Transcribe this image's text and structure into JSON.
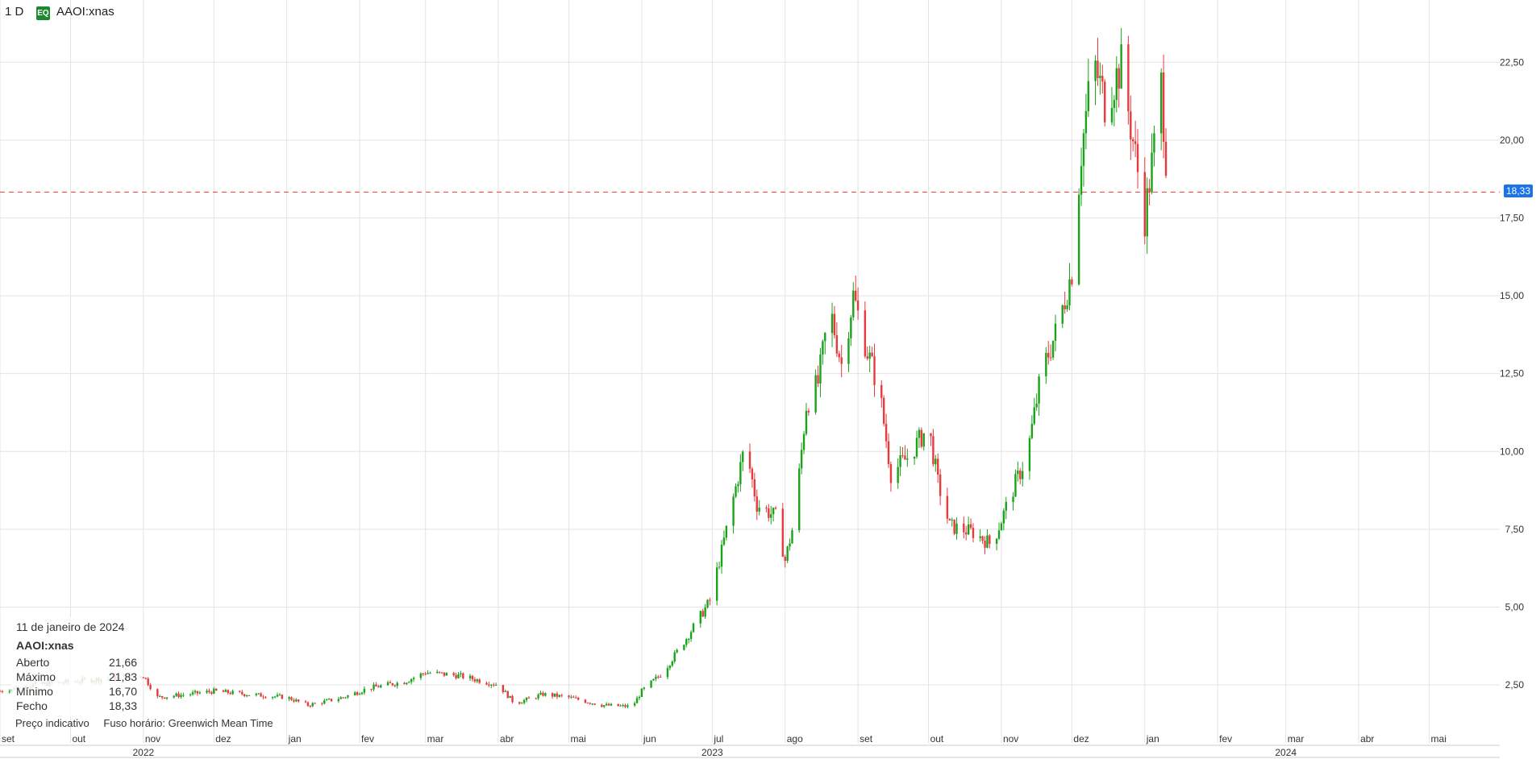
{
  "header": {
    "interval": "1 D",
    "badge": "EQ",
    "symbol": "AAOI:xnas"
  },
  "colors": {
    "up": "#1aa31a",
    "down": "#e8393e",
    "grid": "#e3e3e3",
    "last_line": "#e8393e",
    "last_badge": "#1a73e8"
  },
  "info": {
    "date": "11 de janeiro de 2024",
    "symbol": "AAOI:xnas",
    "rows": [
      {
        "label": "Aberto",
        "value": "21,66"
      },
      {
        "label": "Máximo",
        "value": "21,83"
      },
      {
        "label": "Mínimo",
        "value": "16,70"
      },
      {
        "label": "Fecho",
        "value": "18,33"
      }
    ]
  },
  "footer": {
    "note": "Preço indicativo",
    "timezone": "Fuso horário: Greenwich Mean Time"
  },
  "chart_data": {
    "type": "candlestick",
    "x_start": "2022-09-01",
    "x_end": "2024-05-31",
    "ylim": [
      1.0,
      24.5
    ],
    "y_ticks": [
      2.5,
      5.0,
      7.5,
      10.0,
      12.5,
      15.0,
      17.5,
      20.0,
      22.5
    ],
    "y_tick_labels": [
      "2,50",
      "5,00",
      "7,50",
      "10,00",
      "12,50",
      "15,00",
      "17,50",
      "20,00",
      "22,50"
    ],
    "month_labels": [
      {
        "date": "2022-09-01",
        "label": "set"
      },
      {
        "date": "2022-10-01",
        "label": "out"
      },
      {
        "date": "2022-11-01",
        "label": "nov"
      },
      {
        "date": "2022-12-01",
        "label": "dez"
      },
      {
        "date": "2023-01-01",
        "label": "jan"
      },
      {
        "date": "2023-02-01",
        "label": "fev"
      },
      {
        "date": "2023-03-01",
        "label": "mar"
      },
      {
        "date": "2023-04-01",
        "label": "abr"
      },
      {
        "date": "2023-05-01",
        "label": "mai"
      },
      {
        "date": "2023-06-01",
        "label": "jun"
      },
      {
        "date": "2023-07-01",
        "label": "jul"
      },
      {
        "date": "2023-08-01",
        "label": "ago"
      },
      {
        "date": "2023-09-01",
        "label": "set"
      },
      {
        "date": "2023-10-01",
        "label": "out"
      },
      {
        "date": "2023-11-01",
        "label": "nov"
      },
      {
        "date": "2023-12-01",
        "label": "dez"
      },
      {
        "date": "2024-01-01",
        "label": "jan"
      },
      {
        "date": "2024-02-01",
        "label": "fev"
      },
      {
        "date": "2024-03-01",
        "label": "mar"
      },
      {
        "date": "2024-04-01",
        "label": "abr"
      },
      {
        "date": "2024-05-01",
        "label": "mai"
      }
    ],
    "year_labels": [
      {
        "date": "2022-11-01",
        "label": "2022"
      },
      {
        "date": "2023-07-01",
        "label": "2023"
      },
      {
        "date": "2024-03-01",
        "label": "2024"
      }
    ],
    "last_price": 18.33,
    "last_price_label": "18,33",
    "closes": [
      [
        "2022-09-01",
        2.3
      ],
      [
        "2022-09-15",
        2.5
      ],
      [
        "2022-10-01",
        2.6
      ],
      [
        "2022-10-15",
        2.7
      ],
      [
        "2022-11-01",
        2.8
      ],
      [
        "2022-11-07",
        2.1
      ],
      [
        "2022-11-20",
        2.2
      ],
      [
        "2022-12-01",
        2.3
      ],
      [
        "2022-12-15",
        2.2
      ],
      [
        "2023-01-01",
        2.1
      ],
      [
        "2023-01-10",
        1.85
      ],
      [
        "2023-01-25",
        2.1
      ],
      [
        "2023-02-05",
        2.4
      ],
      [
        "2023-02-20",
        2.6
      ],
      [
        "2023-03-01",
        2.9
      ],
      [
        "2023-03-15",
        2.8
      ],
      [
        "2023-04-01",
        2.5
      ],
      [
        "2023-04-08",
        1.9
      ],
      [
        "2023-04-20",
        2.2
      ],
      [
        "2023-05-01",
        2.1
      ],
      [
        "2023-05-15",
        1.85
      ],
      [
        "2023-05-28",
        1.8
      ],
      [
        "2023-06-01",
        2.3
      ],
      [
        "2023-06-10",
        2.9
      ],
      [
        "2023-06-20",
        4.0
      ],
      [
        "2023-06-30",
        5.2
      ],
      [
        "2023-07-05",
        6.8
      ],
      [
        "2023-07-10",
        8.5
      ],
      [
        "2023-07-15",
        10.2
      ],
      [
        "2023-07-20",
        8.3
      ],
      [
        "2023-07-28",
        7.9
      ],
      [
        "2023-08-01",
        6.5
      ],
      [
        "2023-08-05",
        7.8
      ],
      [
        "2023-08-10",
        11.5
      ],
      [
        "2023-08-15",
        12.2
      ],
      [
        "2023-08-20",
        14.6
      ],
      [
        "2023-08-25",
        12.8
      ],
      [
        "2023-08-30",
        15.0
      ],
      [
        "2023-09-05",
        13.2
      ],
      [
        "2023-09-10",
        12.0
      ],
      [
        "2023-09-15",
        9.3
      ],
      [
        "2023-09-22",
        9.8
      ],
      [
        "2023-10-01",
        10.8
      ],
      [
        "2023-10-05",
        9.0
      ],
      [
        "2023-10-10",
        7.6
      ],
      [
        "2023-10-20",
        7.4
      ],
      [
        "2023-10-28",
        7.0
      ],
      [
        "2023-11-05",
        8.6
      ],
      [
        "2023-11-12",
        9.9
      ],
      [
        "2023-11-18",
        12.5
      ],
      [
        "2023-11-25",
        14.0
      ],
      [
        "2023-12-01",
        15.8
      ],
      [
        "2023-12-05",
        19.6
      ],
      [
        "2023-12-10",
        22.6
      ],
      [
        "2023-12-15",
        21.2
      ],
      [
        "2023-12-22",
        22.4
      ],
      [
        "2023-12-28",
        19.5
      ],
      [
        "2024-01-01",
        17.5
      ],
      [
        "2024-01-05",
        19.8
      ],
      [
        "2024-01-08",
        21.8
      ],
      [
        "2024-01-11",
        18.33
      ]
    ]
  }
}
